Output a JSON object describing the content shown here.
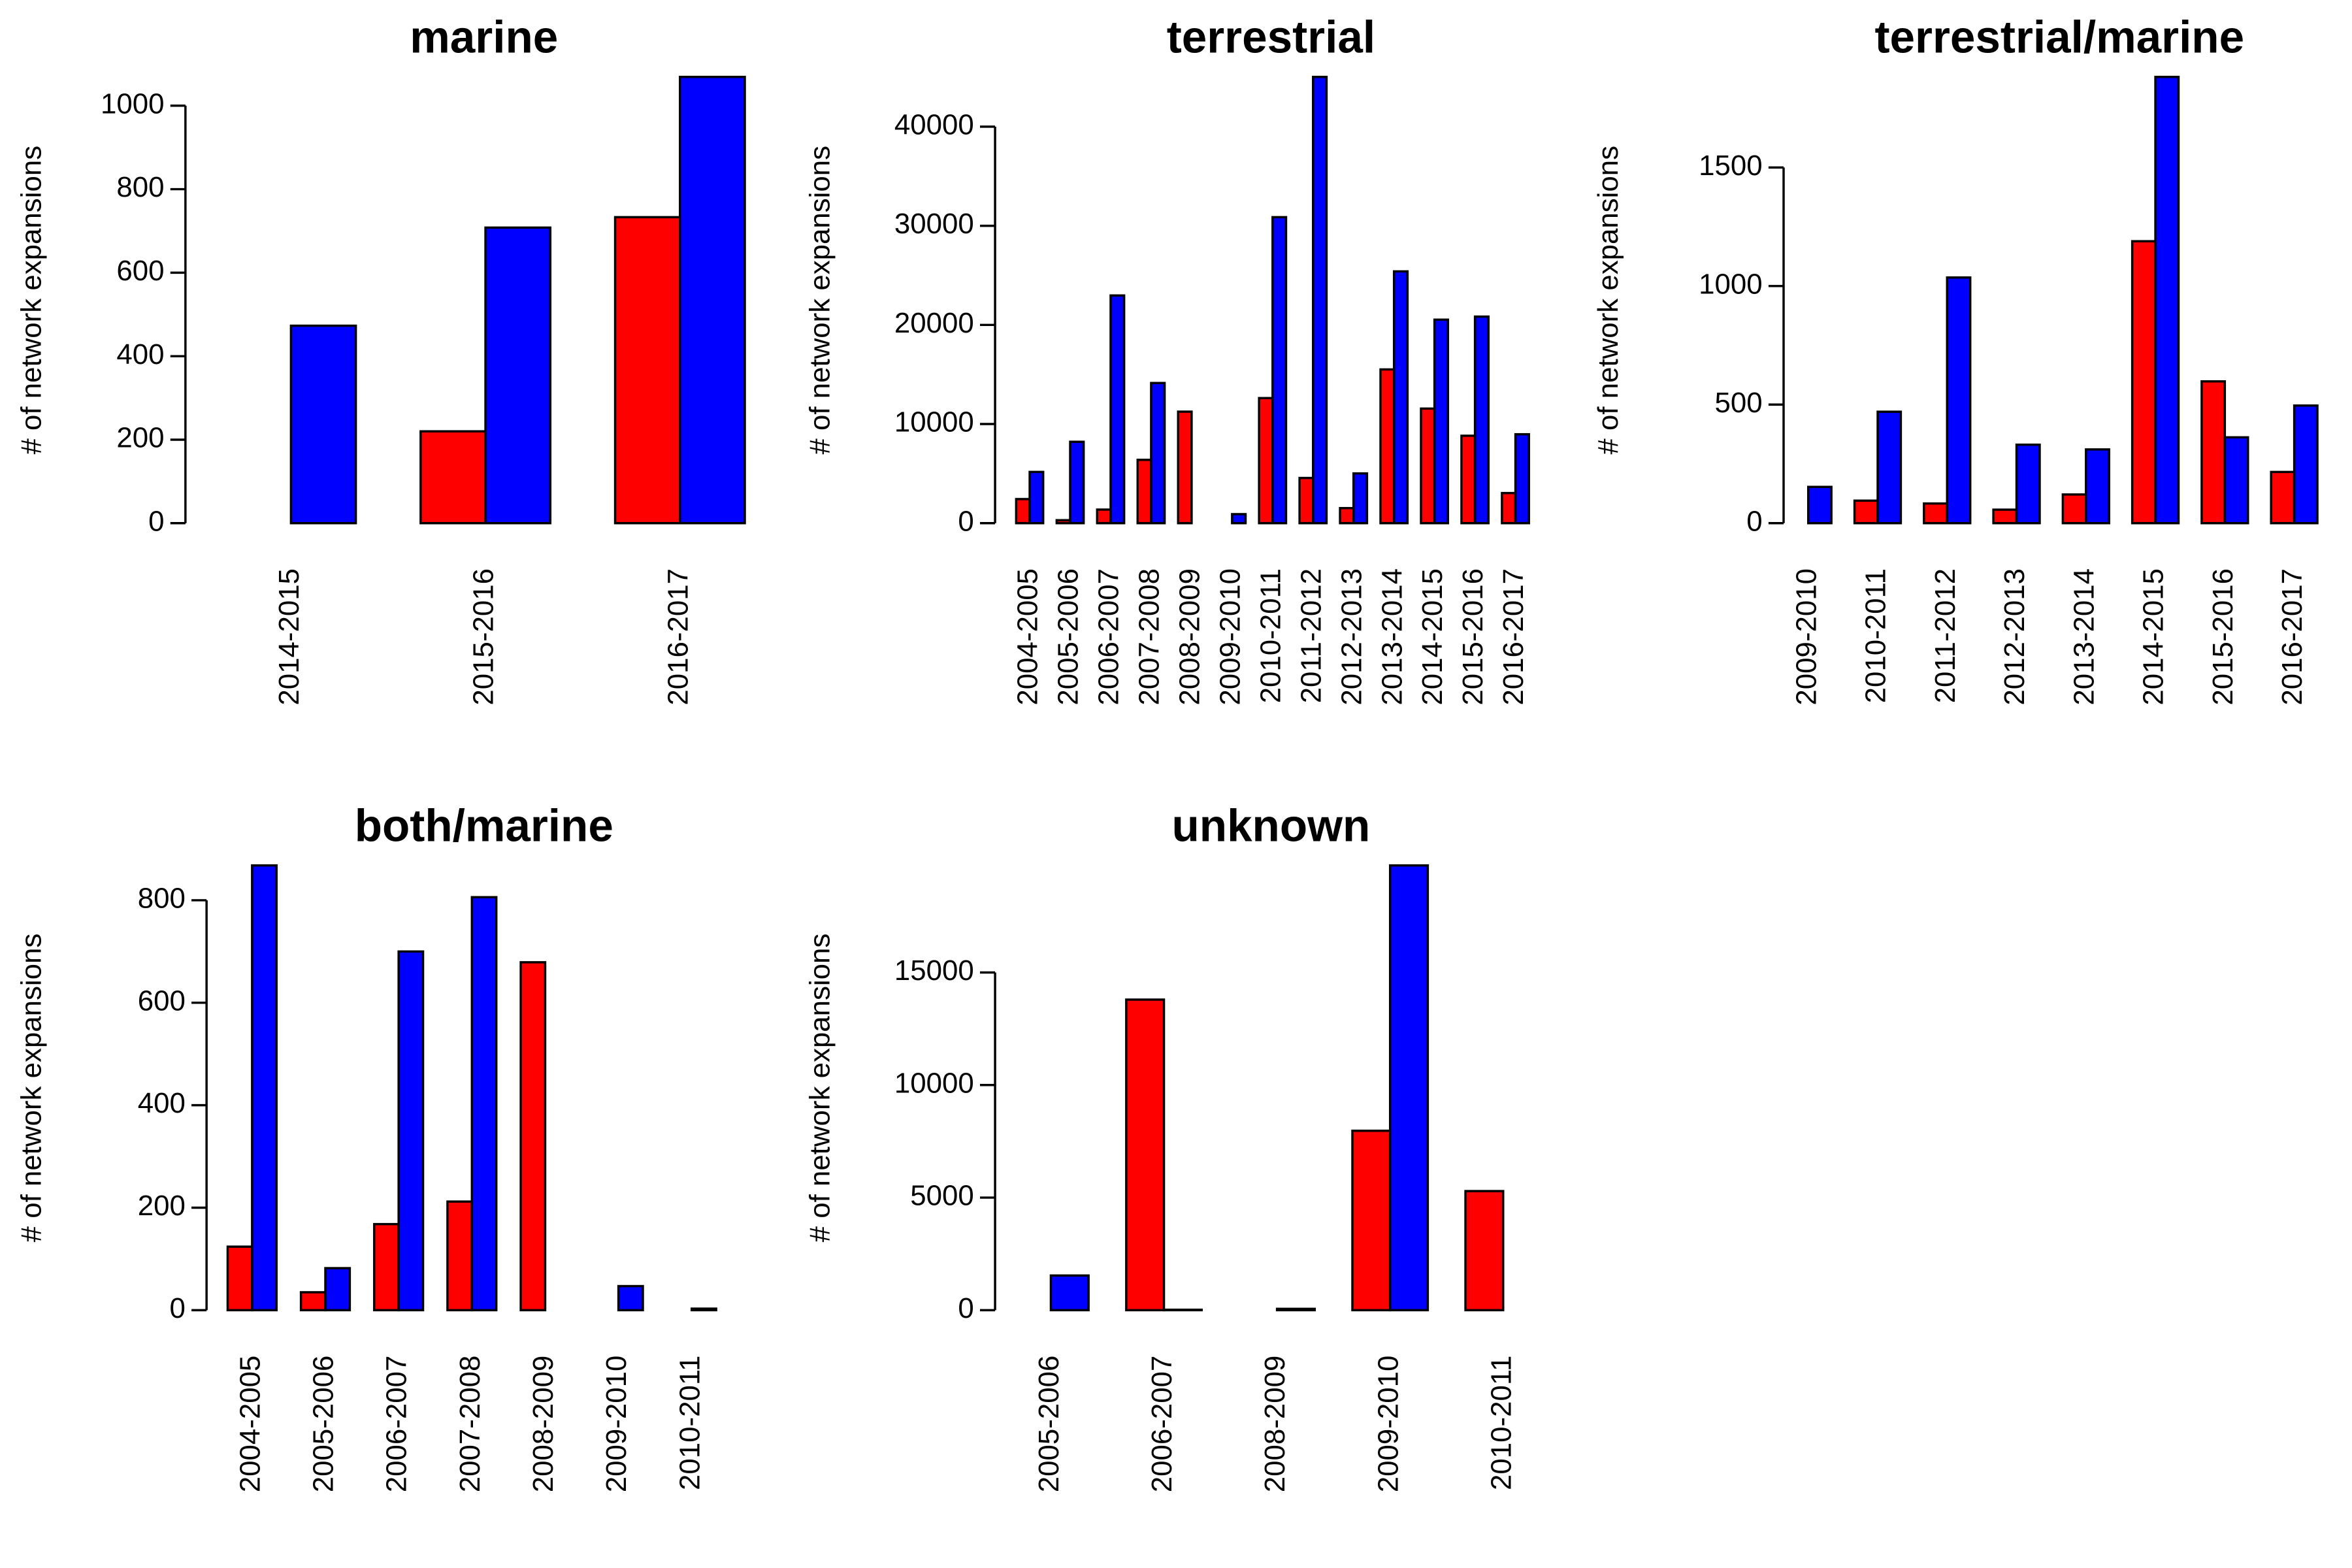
{
  "chart_data": [
    {
      "type": "bar",
      "title": "marine",
      "y_label": "# of network expansions",
      "categories": [
        "2014-2015",
        "2015-2016",
        "2016-2017"
      ],
      "series": [
        {
          "color": "#ff0000",
          "values": [
            null,
            220,
            733
          ]
        },
        {
          "color": "#0000ff",
          "values": [
            473,
            708,
            1069
          ]
        }
      ],
      "ylim": [
        0,
        1069
      ],
      "yticks": [
        0,
        200,
        400,
        600,
        800,
        1000
      ]
    },
    {
      "type": "bar",
      "title": "terrestrial",
      "y_label": "# of network expansions",
      "categories": [
        "2004-2005",
        "2005-2006",
        "2006-2007",
        "2007-2008",
        "2008-2009",
        "2009-2010",
        "2010-2011",
        "2011-2012",
        "2012-2013",
        "2013-2014",
        "2014-2015",
        "2015-2016",
        "2016-2017"
      ],
      "series": [
        {
          "color": "#ff0000",
          "values": [
            2430,
            300,
            1370,
            6390,
            11250,
            null,
            12620,
            4560,
            1520,
            15510,
            11560,
            8820,
            3040
          ]
        },
        {
          "color": "#0000ff",
          "values": [
            5170,
            8210,
            22970,
            14140,
            null,
            910,
            30870,
            45020,
            5020,
            25400,
            20530,
            20840,
            8970
          ]
        }
      ],
      "ylim": [
        0,
        45020
      ],
      "yticks": [
        0,
        10000,
        20000,
        30000,
        40000
      ]
    },
    {
      "type": "bar",
      "title": "terrestrial/marine",
      "y_label": "# of network expansions",
      "categories": [
        "2009-2010",
        "2010-2011",
        "2011-2012",
        "2012-2013",
        "2013-2014",
        "2014-2015",
        "2015-2016",
        "2016-2017"
      ],
      "series": [
        {
          "color": "#ff0000",
          "values": [
            null,
            95,
            83,
            57,
            121,
            1189,
            598,
            216
          ]
        },
        {
          "color": "#0000ff",
          "values": [
            153,
            470,
            1036,
            331,
            311,
            1882,
            362,
            496
          ]
        }
      ],
      "ylim": [
        0,
        1882
      ],
      "yticks": [
        0,
        500,
        1000,
        1500
      ]
    },
    {
      "type": "bar",
      "title": "both/marine",
      "y_label": "# of network expansions",
      "categories": [
        "2004-2005",
        "2005-2006",
        "2006-2007",
        "2007-2008",
        "2008-2009",
        "2009-2010",
        "2010-2011"
      ],
      "series": [
        {
          "color": "#ff0000",
          "values": [
            124,
            35,
            168,
            212,
            679,
            null,
            null
          ]
        },
        {
          "color": "#0000ff",
          "values": [
            868,
            82,
            700,
            806,
            null,
            47,
            3
          ]
        }
      ],
      "ylim": [
        0,
        868
      ],
      "yticks": [
        0,
        200,
        400,
        600,
        800
      ]
    },
    {
      "type": "bar",
      "title": "unknown",
      "y_label": "# of network expansions",
      "categories": [
        "2005-2006",
        "2006-2007",
        "2008-2009",
        "2009-2010",
        "2010-2011"
      ],
      "series": [
        {
          "color": "#ff0000",
          "values": [
            null,
            13795,
            null,
            7969,
            5290
          ]
        },
        {
          "color": "#0000ff",
          "values": [
            1540,
            20,
            60,
            19755,
            null
          ]
        }
      ],
      "ylim": [
        0,
        19755
      ],
      "yticks": [
        0,
        5000,
        10000,
        15000
      ]
    }
  ]
}
